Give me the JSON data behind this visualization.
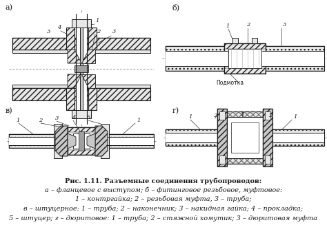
{
  "fig_width": 4.74,
  "fig_height": 3.43,
  "dpi": 100,
  "caption_lines": [
    {
      "text": "Рис. 1.11. Разъемные соединения трубопроводов:",
      "style": "normal",
      "size": 7.0,
      "bold": true
    },
    {
      "text": "а – фланцевое с выступом; б – фитинговое резьбовое, муфтовое:",
      "style": "italic",
      "size": 7.0,
      "bold": false
    },
    {
      "text": "1 – контргайка; 2 – резьбовая муфта, 3 – труба;",
      "style": "italic",
      "size": 7.0,
      "bold": false
    },
    {
      "text": "в – штуцерное: 1 – труба; 2 – наконечник; 3 – накидная гайка; 4 – прокладка;",
      "style": "italic",
      "size": 7.0,
      "bold": false
    },
    {
      "text": "5 – штуцер; г – дюритовое: 1 – труба; 2 – стяжной хомутик; 3 – дюритовая муфта",
      "style": "italic",
      "size": 7.0,
      "bold": false
    }
  ],
  "label_a": "а)",
  "label_b": "б)",
  "label_v": "в)",
  "label_g": "г)",
  "line_color": "#1a1a1a",
  "fill_light": "#e8e8e8",
  "fill_mid": "#c8c8c8",
  "fill_dark": "#a0a0a0",
  "fill_white": "#ffffff",
  "center_line_color": "#555555"
}
